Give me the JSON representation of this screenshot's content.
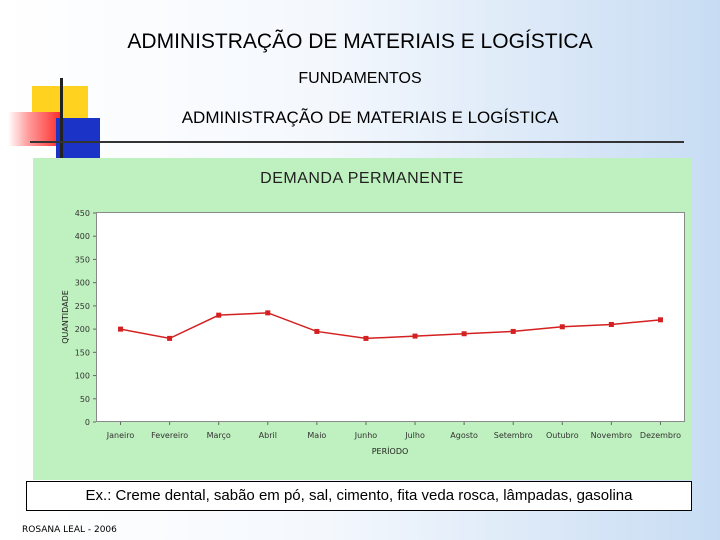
{
  "slide": {
    "title": "ADMINISTRAÇÃO DE MATERIAIS E LOGÍSTICA",
    "subtitle": "FUNDAMENTOS",
    "section_title": "ADMINISTRAÇÃO DE MATERIAIS E LOGÍSTICA",
    "example_text": "Ex.: Creme dental, sabão em pó, sal, cimento, fita veda rosca, lâmpadas, gasolina",
    "footer": "ROSANA LEAL - 2006"
  },
  "colors": {
    "series": "#d42020",
    "panel": "#bff0bf",
    "deco_yellow": "#ffd21f",
    "deco_blue": "#1c33c8",
    "deco_red": "#ff3030"
  },
  "chart_data": {
    "type": "line",
    "title": "DEMANDA PERMANENTE",
    "xlabel": "PERÍODO",
    "ylabel": "QUANTIDADE",
    "categories": [
      "Janeiro",
      "Fevereiro",
      "Março",
      "Abril",
      "Maio",
      "Junho",
      "Julho",
      "Agosto",
      "Setembro",
      "Outubro",
      "Novembro",
      "Dezembro"
    ],
    "series": [
      {
        "values": [
          200,
          180,
          230,
          235,
          195,
          180,
          185,
          190,
          195,
          205,
          210,
          220
        ]
      }
    ],
    "ylim": [
      0,
      450
    ],
    "yticks": [
      0,
      50,
      100,
      150,
      200,
      250,
      300,
      350,
      400,
      450
    ],
    "grid": false,
    "legend": "none"
  }
}
